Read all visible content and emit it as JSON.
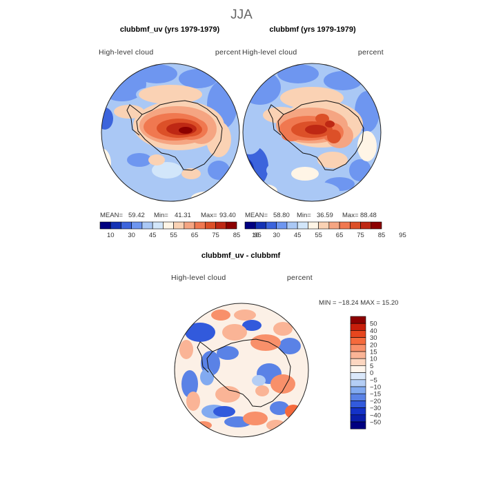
{
  "page": {
    "season": "JJA"
  },
  "panels": [
    {
      "title": "clubbmf_uv (yrs 1979-1979)",
      "left_label": "High-level  cloud",
      "right_label": "percent",
      "stats": {
        "mean_label": "MEAN=",
        "mean": "59.42",
        "min_label": "Min=",
        "min": "41.31",
        "max_label": "Max=",
        "max": "93.40"
      }
    },
    {
      "title": "clubbmf (yrs 1979-1979)",
      "left_label": "High-level  cloud",
      "right_label": "percent",
      "stats": {
        "mean_label": "MEAN=",
        "mean": "58.80",
        "min_label": "Min=",
        "min": "36.59",
        "max_label": "Max=",
        "max": "88.48"
      }
    }
  ],
  "diff_panel": {
    "title": "clubbmf_uv - clubbmf",
    "left_label": "High-level  cloud",
    "right_label": "percent",
    "minmax": "MIN = −18.24  MAX =   15.20"
  },
  "chart_data": [
    {
      "type": "heatmap",
      "projection": "south-polar stereographic",
      "title": "clubbmf_uv (yrs 1979-1979)",
      "variable": "High-level cloud",
      "units": "percent",
      "mean": 59.42,
      "min": 41.31,
      "max": 93.4,
      "colorbar": {
        "levels": [
          10,
          30,
          45,
          55,
          65,
          75,
          85,
          95
        ],
        "colors": [
          "#000080",
          "#1432b4",
          "#3c64dc",
          "#6e96f0",
          "#aac8f5",
          "#d2e6fa",
          "#fff5e6",
          "#fad2b4",
          "#f5a582",
          "#f07850",
          "#dc5028",
          "#be2814",
          "#8c0000"
        ]
      }
    },
    {
      "type": "heatmap",
      "projection": "south-polar stereographic",
      "title": "clubbmf (yrs 1979-1979)",
      "variable": "High-level cloud",
      "units": "percent",
      "mean": 58.8,
      "min": 36.59,
      "max": 88.48,
      "colorbar": {
        "levels": [
          10,
          30,
          45,
          55,
          65,
          75,
          85,
          95
        ],
        "colors": [
          "#000080",
          "#1432b4",
          "#3c64dc",
          "#6e96f0",
          "#aac8f5",
          "#d2e6fa",
          "#fff5e6",
          "#fad2b4",
          "#f5a582",
          "#f07850",
          "#dc5028",
          "#be2814",
          "#8c0000"
        ]
      }
    },
    {
      "type": "heatmap",
      "projection": "south-polar stereographic",
      "title": "clubbmf_uv - clubbmf",
      "variable": "High-level cloud",
      "units": "percent",
      "min": -18.24,
      "max": 15.2,
      "colorbar": {
        "orientation": "vertical",
        "labels": [
          "50",
          "40",
          "30",
          "20",
          "15",
          "10",
          "5",
          "0",
          "−5",
          "−10",
          "−15",
          "−20",
          "−30",
          "−40",
          "−50"
        ],
        "colors": [
          "#8c0000",
          "#c81e0a",
          "#e6461e",
          "#f56a3c",
          "#f8906a",
          "#fab496",
          "#fcd6c0",
          "#fff5ec",
          "#dbe8fa",
          "#b4cef5",
          "#82aaf0",
          "#5a82e6",
          "#325adc",
          "#1432c8",
          "#0a1eaa",
          "#000080"
        ]
      }
    }
  ]
}
